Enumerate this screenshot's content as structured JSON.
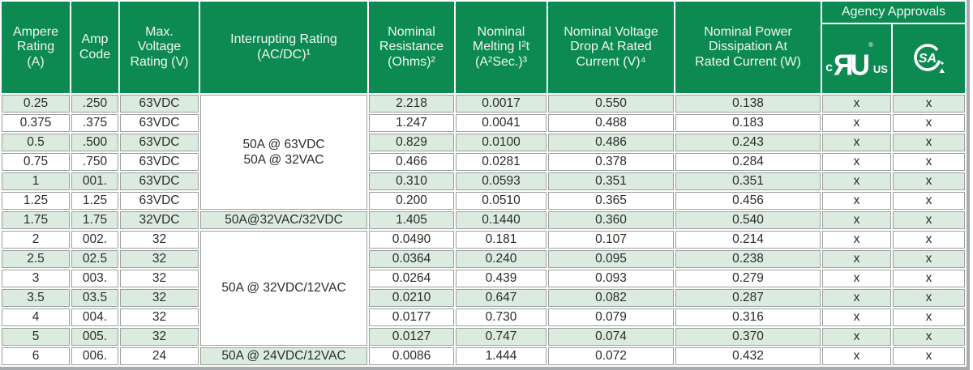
{
  "colors": {
    "header_green": "#0c8a51",
    "stripe_green": "#dcebe0",
    "border_gray": "#9c9e9e",
    "text_dark": "#2b2c2a",
    "shadow_gray": "#a9abad"
  },
  "header": {
    "ampere": "Ampere\nRating\n(A)",
    "amp_code": "Amp\nCode",
    "max_voltage": "Max.\nVoltage\nRating (V)",
    "interrupting": "Interrupting Rating\n(AC/DC)¹",
    "resistance": "Nominal\nResistance\n(Ohms)²",
    "melting": "Nominal\nMelting I²t\n(A²Sec.)³",
    "voltage_drop": "Nominal Voltage\nDrop At Rated\nCurrent (V)⁴",
    "power": "Nominal Power\nDissipation At\nRated Current (W)",
    "agency": "Agency Approvals",
    "cul_c": "c",
    "cul_monogram": "ЯU",
    "cul_reg": "®",
    "cul_us": "US",
    "csa_letters": "SA"
  },
  "rows": [
    {
      "ampere": "0.25",
      "code": ".250",
      "voltage": "63VDC",
      "interrupt": {
        "text": "50A @ 63VDC\n50A @ 32VAC",
        "span": 6,
        "tint": false
      },
      "resistance": "2.218",
      "melting": "0.0017",
      "vdrop": "0.550",
      "power": "0.138",
      "ul": "x",
      "csa": "x"
    },
    {
      "ampere": "0.375",
      "code": ".375",
      "voltage": "63VDC",
      "resistance": "1.247",
      "melting": "0.0041",
      "vdrop": "0.488",
      "power": "0.183",
      "ul": "x",
      "csa": "x"
    },
    {
      "ampere": "0.5",
      "code": ".500",
      "voltage": "63VDC",
      "resistance": "0.829",
      "melting": "0.0100",
      "vdrop": "0.486",
      "power": "0.243",
      "ul": "x",
      "csa": "x"
    },
    {
      "ampere": "0.75",
      "code": ".750",
      "voltage": "63VDC",
      "resistance": "0.466",
      "melting": "0.0281",
      "vdrop": "0.378",
      "power": "0.284",
      "ul": "x",
      "csa": "x"
    },
    {
      "ampere": "1",
      "code": "001.",
      "voltage": "63VDC",
      "resistance": "0.310",
      "melting": "0.0593",
      "vdrop": "0.351",
      "power": "0.351",
      "ul": "x",
      "csa": "x"
    },
    {
      "ampere": "1.25",
      "code": "1.25",
      "voltage": "63VDC",
      "resistance": "0.200",
      "melting": "0.0510",
      "vdrop": "0.365",
      "power": "0.456",
      "ul": "x",
      "csa": "x"
    },
    {
      "ampere": "1.75",
      "code": "1.75",
      "voltage": "32VDC",
      "interrupt": {
        "text": "50A@32VAC/32VDC",
        "span": 1,
        "tint": true
      },
      "resistance": "1.405",
      "melting": "0.1440",
      "vdrop": "0.360",
      "power": "0.540",
      "ul": "x",
      "csa": "x"
    },
    {
      "ampere": "2",
      "code": "002.",
      "voltage": "32",
      "interrupt": {
        "text": "50A @ 32VDC/12VAC",
        "span": 6,
        "tint": false
      },
      "resistance": "0.0490",
      "melting": "0.181",
      "vdrop": "0.107",
      "power": "0.214",
      "ul": "x",
      "csa": "x"
    },
    {
      "ampere": "2.5",
      "code": "02.5",
      "voltage": "32",
      "resistance": "0.0364",
      "melting": "0.240",
      "vdrop": "0.095",
      "power": "0.238",
      "ul": "x",
      "csa": "x"
    },
    {
      "ampere": "3",
      "code": "003.",
      "voltage": "32",
      "resistance": "0.0264",
      "melting": "0.439",
      "vdrop": "0.093",
      "power": "0.279",
      "ul": "x",
      "csa": "x"
    },
    {
      "ampere": "3.5",
      "code": "03.5",
      "voltage": "32",
      "resistance": "0.0210",
      "melting": "0.647",
      "vdrop": "0.082",
      "power": "0.287",
      "ul": "x",
      "csa": "x"
    },
    {
      "ampere": "4",
      "code": "004.",
      "voltage": "32",
      "resistance": "0.0177",
      "melting": "0.730",
      "vdrop": "0.079",
      "power": "0.316",
      "ul": "x",
      "csa": "x"
    },
    {
      "ampere": "5",
      "code": "005.",
      "voltage": "32",
      "resistance": "0.0127",
      "melting": "0.747",
      "vdrop": "0.074",
      "power": "0.370",
      "ul": "x",
      "csa": "x"
    },
    {
      "ampere": "6",
      "code": "006.",
      "voltage": "24",
      "interrupt": {
        "text": "50A @ 24VDC/12VAC",
        "span": 1,
        "tint": true
      },
      "resistance": "0.0086",
      "melting": "1.444",
      "vdrop": "0.072",
      "power": "0.432",
      "ul": "x",
      "csa": "x"
    }
  ]
}
